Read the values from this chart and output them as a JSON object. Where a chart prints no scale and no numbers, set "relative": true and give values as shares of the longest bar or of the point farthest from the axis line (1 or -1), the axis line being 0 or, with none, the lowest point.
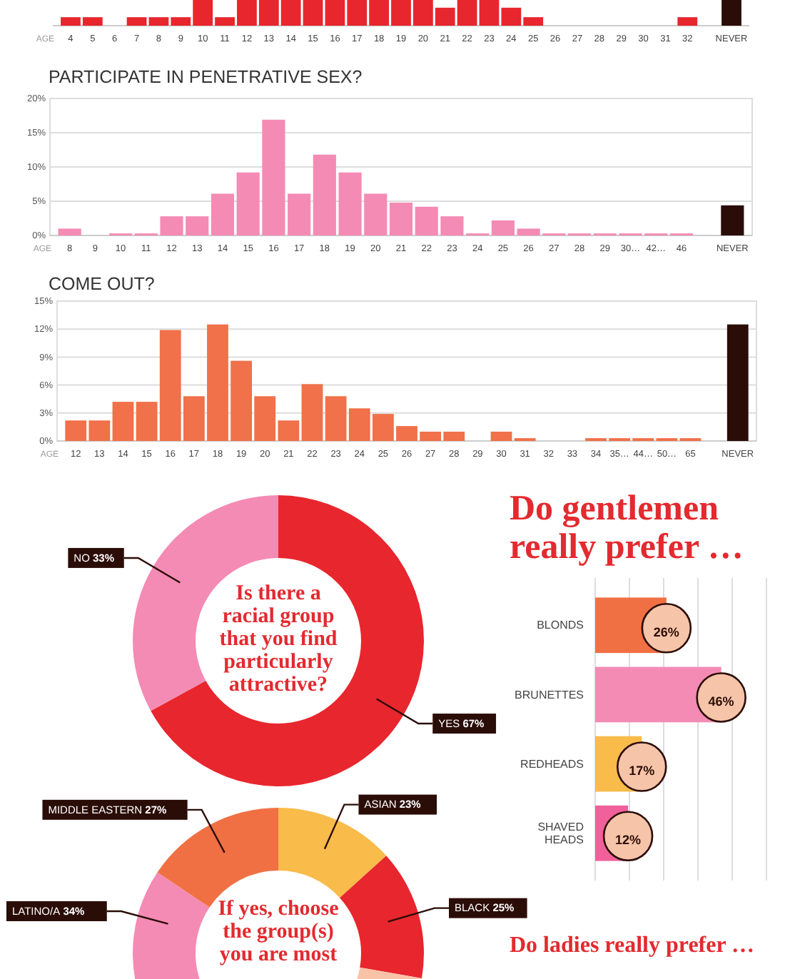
{
  "chart_data": [
    {
      "type": "bar",
      "relative": true,
      "xlabel": "AGE",
      "categories": [
        "4",
        "5",
        "6",
        "7",
        "8",
        "9",
        "10",
        "11",
        "12",
        "13",
        "14",
        "15",
        "16",
        "17",
        "18",
        "19",
        "20",
        "21",
        "22",
        "23",
        "24",
        "25",
        "26",
        "27",
        "28",
        "29",
        "30",
        "31",
        "32",
        null,
        "NEVER"
      ],
      "values": [
        0.33,
        0.33,
        0,
        0.33,
        0.33,
        0.33,
        1,
        0.33,
        1,
        1,
        1,
        1,
        1,
        1,
        1,
        1,
        1,
        0.7,
        1,
        1,
        0.7,
        0.33,
        0,
        0,
        0,
        0,
        0,
        0,
        0.33,
        null,
        1
      ],
      "colors": [
        "#e8262d",
        "#e8262d",
        "#e8262d",
        "#e8262d",
        "#e8262d",
        "#e8262d",
        "#e8262d",
        "#e8262d",
        "#e8262d",
        "#e8262d",
        "#e8262d",
        "#e8262d",
        "#e8262d",
        "#e8262d",
        "#e8262d",
        "#e8262d",
        "#e8262d",
        "#e8262d",
        "#e8262d",
        "#e8262d",
        "#e8262d",
        "#e8262d",
        "#e8262d",
        "#e8262d",
        "#e8262d",
        "#e8262d",
        "#e8262d",
        "#e8262d",
        "#e8262d",
        "#e8262d",
        "#2b0d08"
      ]
    },
    {
      "type": "bar",
      "title": "PARTICIPATE IN PENETRATIVE SEX?",
      "xlabel": "AGE",
      "categories": [
        "8",
        "9",
        "10",
        "11",
        "12",
        "13",
        "14",
        "15",
        "16",
        "17",
        "18",
        "19",
        "20",
        "21",
        "22",
        "23",
        "24",
        "25",
        "26",
        "27",
        "28",
        "29",
        "30…",
        "42…",
        "46",
        null,
        "NEVER"
      ],
      "values": [
        1,
        0,
        0.3,
        0.3,
        2.8,
        2.8,
        6.1,
        9.2,
        16.9,
        6.1,
        11.8,
        9.2,
        6.1,
        4.8,
        4.2,
        2.8,
        0.3,
        2.2,
        1,
        0.3,
        0.3,
        0.3,
        0.3,
        0.3,
        0.3,
        null,
        4.4
      ],
      "colors": [
        "#f48bb4",
        "#f48bb4",
        "#f48bb4",
        "#f48bb4",
        "#f48bb4",
        "#f48bb4",
        "#f48bb4",
        "#f48bb4",
        "#f48bb4",
        "#f48bb4",
        "#f48bb4",
        "#f48bb4",
        "#f48bb4",
        "#f48bb4",
        "#f48bb4",
        "#f48bb4",
        "#f48bb4",
        "#f48bb4",
        "#f48bb4",
        "#f48bb4",
        "#f48bb4",
        "#f48bb4",
        "#f48bb4",
        "#f48bb4",
        "#f48bb4",
        "#f48bb4",
        "#2b0d08"
      ],
      "ylim": [
        0,
        20
      ],
      "yticks": [
        {
          "value": 0,
          "label": "0%"
        },
        {
          "value": 5,
          "label": "5%"
        },
        {
          "value": 10,
          "label": "10%"
        },
        {
          "value": 15,
          "label": "15%"
        },
        {
          "value": 20,
          "label": "20%"
        }
      ],
      "grid": "y"
    },
    {
      "type": "bar",
      "title": "COME OUT?",
      "xlabel": "AGE",
      "categories": [
        "12",
        "13",
        "14",
        "15",
        "16",
        "17",
        "18",
        "19",
        "20",
        "21",
        "22",
        "23",
        "24",
        "25",
        "26",
        "27",
        "28",
        "29",
        "30",
        "31",
        "32",
        "33",
        "34",
        "35…",
        "44…",
        "50…",
        "65",
        null,
        "NEVER"
      ],
      "values": [
        2.2,
        2.2,
        4.2,
        4.2,
        11.9,
        4.8,
        12.5,
        8.6,
        4.8,
        2.2,
        6.1,
        4.8,
        3.5,
        2.9,
        1.6,
        1,
        1,
        0,
        1,
        0.3,
        0,
        0,
        0.3,
        0.3,
        0.3,
        0.3,
        0.3,
        null,
        12.5
      ],
      "colors": [
        "#f0714a",
        "#f0714a",
        "#f0714a",
        "#f0714a",
        "#f0714a",
        "#f0714a",
        "#f0714a",
        "#f0714a",
        "#f0714a",
        "#f0714a",
        "#f0714a",
        "#f0714a",
        "#f0714a",
        "#f0714a",
        "#f0714a",
        "#f0714a",
        "#f0714a",
        "#f0714a",
        "#f0714a",
        "#f0714a",
        "#f0714a",
        "#f0714a",
        "#f0714a",
        "#f0714a",
        "#f0714a",
        "#f0714a",
        "#f0714a",
        "#f0714a",
        "#2b0d08"
      ],
      "ylim": [
        0,
        15
      ],
      "yticks": [
        {
          "value": 0,
          "label": "0%"
        },
        {
          "value": 3,
          "label": "3%"
        },
        {
          "value": 6,
          "label": "6%"
        },
        {
          "value": 9,
          "label": "9%"
        },
        {
          "value": 12,
          "label": "12%"
        },
        {
          "value": 15,
          "label": "15%"
        }
      ],
      "grid": "y"
    },
    {
      "type": "donut",
      "title": "Is there a racial group that you find particularly attractive?",
      "categories": [
        "YES",
        "NO"
      ],
      "values": [
        67,
        33
      ],
      "value_labels": [
        "67%",
        "33%"
      ],
      "colors": [
        "#e8262d",
        "#f48bb4"
      ]
    },
    {
      "type": "bar",
      "orientation": "horizontal",
      "title": "Do gentlemen really prefer …",
      "categories": [
        "BLONDS",
        "BRUNETTES",
        "REDHEADS",
        "SHAVED HEADS"
      ],
      "values": [
        26,
        46,
        17,
        12
      ],
      "value_labels": [
        "26%",
        "46%",
        "17%",
        "12%"
      ],
      "colors": [
        "#f07044",
        "#f48bb4",
        "#f9bb4a",
        "#f0609a"
      ],
      "xlim": [
        0,
        62.5
      ],
      "xticks": [
        {
          "value": 0,
          "label": null
        },
        {
          "value": 12.5,
          "label": null
        },
        {
          "value": 25,
          "label": null
        },
        {
          "value": 37.5,
          "label": null
        },
        {
          "value": 50,
          "label": null
        },
        {
          "value": 62.5,
          "label": null
        }
      ],
      "grid": "x"
    },
    {
      "type": "donut",
      "title": "If yes, choose the group(s) you are most",
      "categories": [
        "ASIAN",
        "BLACK",
        null,
        "LATINO/A",
        "MIDDLE EASTERN"
      ],
      "values": [
        23,
        25,
        64,
        34,
        27
      ],
      "value_labels": [
        "23%",
        "25%",
        null,
        "34%",
        "27%"
      ],
      "colors": [
        "#f9bb4a",
        "#e8262d",
        "#f9c3a8",
        "#f48bb4",
        "#f07044"
      ]
    },
    {
      "type": "other",
      "title": "Do ladies really prefer …"
    }
  ]
}
